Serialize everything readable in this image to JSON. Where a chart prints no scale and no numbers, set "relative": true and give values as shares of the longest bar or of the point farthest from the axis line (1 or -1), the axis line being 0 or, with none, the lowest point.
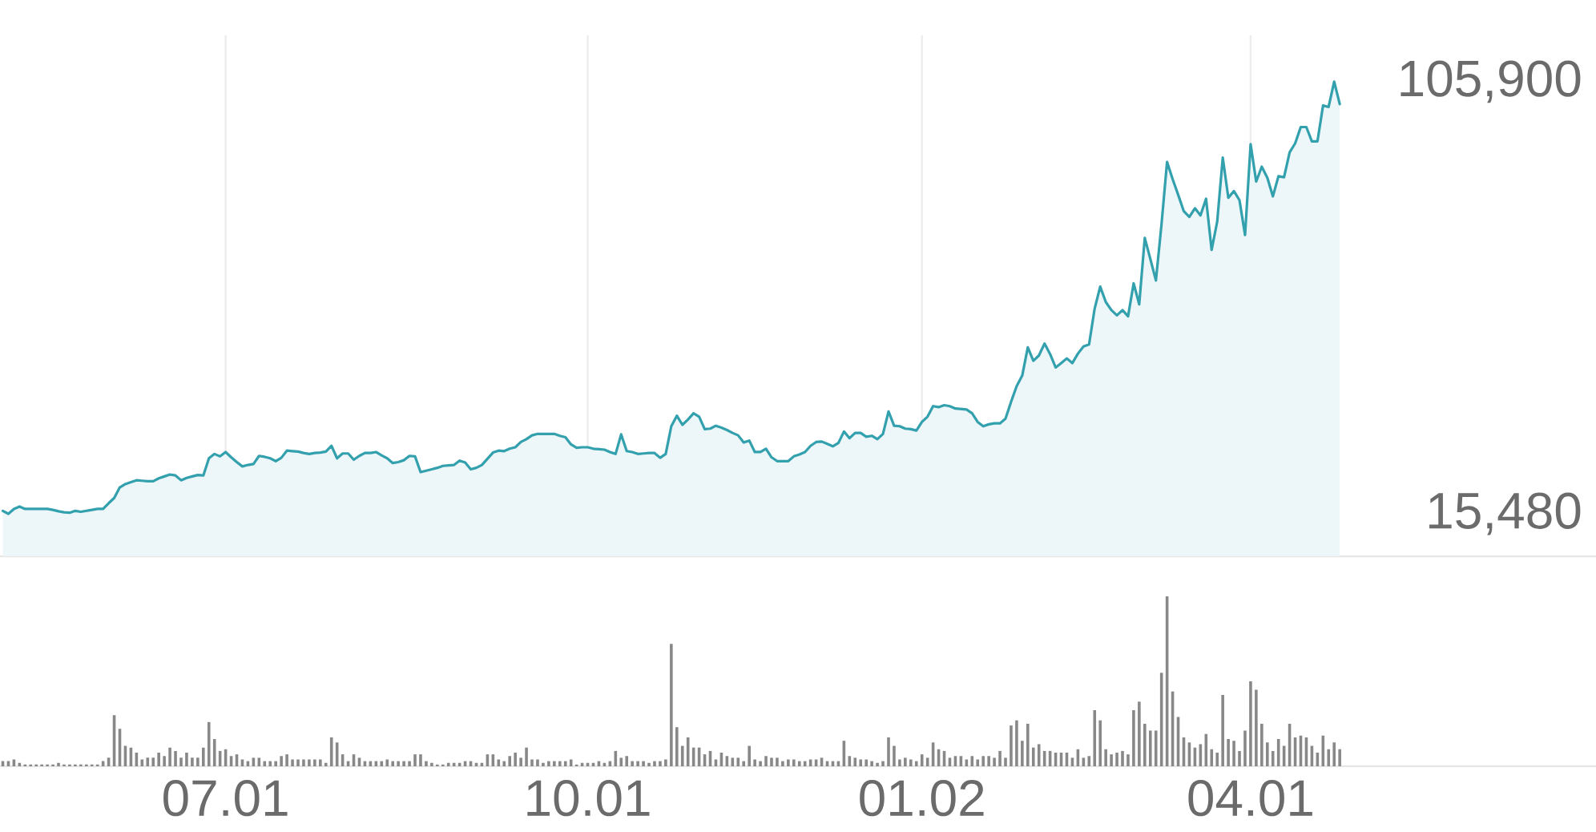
{
  "chart_data": [
    {
      "type": "area",
      "color": "#33a0ad",
      "categories": [
        null,
        null,
        null,
        null,
        null,
        null,
        null,
        null,
        null,
        null,
        null,
        null,
        null,
        null,
        null,
        null,
        null,
        null,
        null,
        null,
        null,
        null,
        null,
        null,
        null,
        null,
        null,
        null,
        null,
        null,
        null,
        null,
        null,
        null,
        null,
        null,
        null,
        null,
        null,
        null,
        "07.01",
        null,
        null,
        null,
        null,
        null,
        null,
        null,
        null,
        null,
        null,
        null,
        null,
        null,
        null,
        null,
        null,
        null,
        null,
        null,
        null,
        null,
        null,
        null,
        null,
        null,
        null,
        null,
        null,
        null,
        null,
        null,
        null,
        null,
        null,
        null,
        null,
        null,
        null,
        null,
        null,
        null,
        null,
        null,
        null,
        null,
        null,
        null,
        null,
        null,
        null,
        null,
        null,
        null,
        null,
        null,
        null,
        null,
        null,
        null,
        null,
        null,
        null,
        null,
        null,
        "10.01",
        null,
        null,
        null,
        null,
        null,
        null,
        null,
        null,
        null,
        null,
        null,
        null,
        null,
        null,
        null,
        null,
        null,
        null,
        null,
        null,
        null,
        null,
        null,
        null,
        null,
        null,
        null,
        null,
        null,
        null,
        null,
        null,
        null,
        null,
        null,
        null,
        null,
        null,
        null,
        null,
        null,
        null,
        null,
        null,
        null,
        null,
        null,
        null,
        null,
        null,
        null,
        null,
        null,
        null,
        null,
        null,
        null,
        null,
        null,
        "01.02",
        null,
        null,
        null,
        null,
        null,
        null,
        null,
        null,
        null,
        null,
        null,
        null,
        null,
        null,
        null,
        null,
        null,
        null,
        null,
        null,
        null,
        null,
        null,
        null,
        null,
        null,
        null,
        null,
        null,
        null,
        null,
        null,
        null,
        null,
        null,
        null,
        null,
        null,
        null,
        null,
        null,
        null,
        null,
        null,
        null,
        null,
        null,
        null,
        null,
        null,
        null,
        null,
        null,
        null,
        null,
        null,
        null,
        null,
        "04.01",
        null,
        null,
        null,
        null,
        null,
        null,
        null,
        null,
        null,
        null,
        null,
        null,
        null,
        null,
        null,
        null
      ],
      "values": [
        16100,
        15480,
        16500,
        17000,
        16500,
        16500,
        16500,
        16500,
        16500,
        16300,
        16000,
        15800,
        15700,
        16100,
        15900,
        16100,
        16300,
        16500,
        16500,
        17700,
        18800,
        21000,
        21700,
        22100,
        22500,
        22400,
        22300,
        22300,
        22900,
        23300,
        23700,
        23500,
        22500,
        23000,
        23300,
        23600,
        23500,
        27100,
        28000,
        27500,
        28400,
        27300,
        26300,
        25400,
        25700,
        25900,
        27600,
        27400,
        27100,
        26500,
        27200,
        28700,
        28600,
        28500,
        28200,
        28000,
        28200,
        28300,
        28500,
        29700,
        27100,
        28100,
        28100,
        26800,
        27600,
        28200,
        28200,
        28400,
        27700,
        27100,
        26100,
        26300,
        26700,
        27600,
        27500,
        24200,
        24500,
        24800,
        25100,
        25500,
        25600,
        25700,
        26600,
        26200,
        24800,
        25100,
        25700,
        27000,
        28300,
        28700,
        28600,
        29100,
        29400,
        30500,
        31100,
        31900,
        32200,
        32200,
        32200,
        32200,
        31800,
        31500,
        30000,
        29300,
        29400,
        29400,
        29100,
        29000,
        28900,
        28400,
        28000,
        32100,
        28600,
        28400,
        28000,
        28100,
        28200,
        28200,
        27200,
        28000,
        33800,
        36000,
        34100,
        35200,
        36500,
        35800,
        33200,
        33300,
        33900,
        33500,
        33000,
        32400,
        31900,
        30400,
        30800,
        28400,
        28400,
        29100,
        27300,
        26500,
        26500,
        26500,
        27500,
        27900,
        28400,
        29700,
        30500,
        30600,
        30100,
        29600,
        30300,
        32700,
        31300,
        32400,
        32400,
        31600,
        31800,
        31100,
        32200,
        36900,
        33900,
        33800,
        33300,
        33200,
        32900,
        34700,
        35800,
        38000,
        37800,
        38200,
        38000,
        37500,
        37400,
        37300,
        36500,
        34700,
        33800,
        34200,
        34400,
        34400,
        35400,
        38900,
        42200,
        44400,
        50300,
        47500,
        48600,
        51100,
        48900,
        46100,
        47000,
        48000,
        47000,
        49000,
        50500,
        50900,
        58400,
        63000,
        59800,
        58100,
        57000,
        58100,
        56800,
        63700,
        59300,
        73200,
        68800,
        64300,
        76000,
        89100,
        85500,
        82200,
        78800,
        77600,
        79400,
        77900,
        81400,
        70700,
        76600,
        90000,
        81600,
        83000,
        81100,
        73800,
        92800,
        85000,
        88100,
        85800,
        81900,
        86100,
        85900,
        91100,
        93000,
        96400,
        96400,
        93400,
        93400,
        100900,
        100600,
        105900,
        101200
      ],
      "ylim": [
        6600,
        115600
      ],
      "yticks": [
        {
          "value": 15480,
          "label": "15,480"
        },
        {
          "value": 105900,
          "label": "105,900"
        }
      ],
      "grid": "x",
      "tick_labels": "y"
    },
    {
      "type": "bar",
      "color": "#888888",
      "relative": true,
      "categories": [
        null,
        null,
        null,
        null,
        null,
        null,
        null,
        null,
        null,
        null,
        null,
        null,
        null,
        null,
        null,
        null,
        null,
        null,
        null,
        null,
        null,
        null,
        null,
        null,
        null,
        null,
        null,
        null,
        null,
        null,
        null,
        null,
        null,
        null,
        null,
        null,
        null,
        null,
        null,
        null,
        "07.01",
        null,
        null,
        null,
        null,
        null,
        null,
        null,
        null,
        null,
        null,
        null,
        null,
        null,
        null,
        null,
        null,
        null,
        null,
        null,
        null,
        null,
        null,
        null,
        null,
        null,
        null,
        null,
        null,
        null,
        null,
        null,
        null,
        null,
        null,
        null,
        null,
        null,
        null,
        null,
        null,
        null,
        null,
        null,
        null,
        null,
        null,
        null,
        null,
        null,
        null,
        null,
        null,
        null,
        null,
        null,
        null,
        null,
        null,
        null,
        null,
        null,
        null,
        null,
        null,
        "10.01",
        null,
        null,
        null,
        null,
        null,
        null,
        null,
        null,
        null,
        null,
        null,
        null,
        null,
        null,
        null,
        null,
        null,
        null,
        null,
        null,
        null,
        null,
        null,
        null,
        null,
        null,
        null,
        null,
        null,
        null,
        null,
        null,
        null,
        null,
        null,
        null,
        null,
        null,
        null,
        null,
        null,
        null,
        null,
        null,
        null,
        null,
        null,
        null,
        null,
        null,
        null,
        null,
        null,
        null,
        null,
        null,
        null,
        null,
        null,
        "01.02",
        null,
        null,
        null,
        null,
        null,
        null,
        null,
        null,
        null,
        null,
        null,
        null,
        null,
        null,
        null,
        null,
        null,
        null,
        null,
        null,
        null,
        null,
        null,
        null,
        null,
        null,
        null,
        null,
        null,
        null,
        null,
        null,
        null,
        null,
        null,
        null,
        null,
        null,
        null,
        null,
        null,
        null,
        null,
        null,
        null,
        null,
        null,
        null,
        null,
        null,
        null,
        null,
        null,
        null,
        null,
        null,
        null,
        null,
        "04.01",
        null,
        null,
        null,
        null,
        null,
        null,
        null,
        null,
        null,
        null,
        null,
        null,
        null,
        null,
        null,
        null
      ],
      "values": [
        0.03,
        0.03,
        0.04,
        0.02,
        0.01,
        0.01,
        0.01,
        0.01,
        0.01,
        0.01,
        0.02,
        0.01,
        0.01,
        0.01,
        0.01,
        0.01,
        0.01,
        0.01,
        0.03,
        0.05,
        0.3,
        0.22,
        0.12,
        0.11,
        0.08,
        0.04,
        0.05,
        0.05,
        0.08,
        0.06,
        0.11,
        0.09,
        0.05,
        0.08,
        0.05,
        0.05,
        0.11,
        0.26,
        0.16,
        0.09,
        0.1,
        0.06,
        0.07,
        0.04,
        0.03,
        0.05,
        0.05,
        0.03,
        0.03,
        0.03,
        0.06,
        0.07,
        0.04,
        0.04,
        0.04,
        0.04,
        0.04,
        0.04,
        0.02,
        0.17,
        0.14,
        0.07,
        0.03,
        0.07,
        0.05,
        0.03,
        0.03,
        0.03,
        0.03,
        0.04,
        0.03,
        0.03,
        0.03,
        0.03,
        0.07,
        0.07,
        0.03,
        0.02,
        0.01,
        0.01,
        0.02,
        0.02,
        0.02,
        0.03,
        0.03,
        0.02,
        0.02,
        0.07,
        0.07,
        0.04,
        0.03,
        0.06,
        0.08,
        0.05,
        0.11,
        0.04,
        0.04,
        0.02,
        0.03,
        0.03,
        0.03,
        0.03,
        0.04,
        0.01,
        0.02,
        0.02,
        0.02,
        0.03,
        0.02,
        0.03,
        0.09,
        0.05,
        0.06,
        0.03,
        0.03,
        0.03,
        0.02,
        0.03,
        0.03,
        0.04,
        0.72,
        0.23,
        0.12,
        0.17,
        0.11,
        0.11,
        0.07,
        0.09,
        0.04,
        0.08,
        0.06,
        0.05,
        0.05,
        0.03,
        0.12,
        0.04,
        0.03,
        0.06,
        0.05,
        0.05,
        0.03,
        0.04,
        0.04,
        0.03,
        0.03,
        0.04,
        0.04,
        0.05,
        0.03,
        0.03,
        0.03,
        0.15,
        0.06,
        0.05,
        0.04,
        0.04,
        0.03,
        0.02,
        0.03,
        0.17,
        0.12,
        0.04,
        0.05,
        0.04,
        0.03,
        0.07,
        0.05,
        0.14,
        0.1,
        0.09,
        0.05,
        0.06,
        0.06,
        0.04,
        0.06,
        0.04,
        0.06,
        0.06,
        0.05,
        0.09,
        0.05,
        0.24,
        0.27,
        0.15,
        0.25,
        0.11,
        0.13,
        0.09,
        0.09,
        0.08,
        0.08,
        0.08,
        0.05,
        0.1,
        0.05,
        0.06,
        0.33,
        0.27,
        0.1,
        0.07,
        0.08,
        0.09,
        0.07,
        0.33,
        0.38,
        0.25,
        0.21,
        0.21,
        0.55,
        1,
        0.44,
        0.29,
        0.17,
        0.14,
        0.11,
        0.13,
        0.19,
        0.1,
        0.08,
        0.42,
        0.16,
        0.15,
        0.09,
        0.21,
        0.5,
        0.45,
        0.25,
        0.14,
        0.09,
        0.16,
        0.12,
        0.25,
        0.17,
        0.18,
        0.17,
        0.12,
        0.08,
        0.18,
        0.1,
        0.14,
        0.1
      ],
      "tick_labels": "x"
    }
  ]
}
